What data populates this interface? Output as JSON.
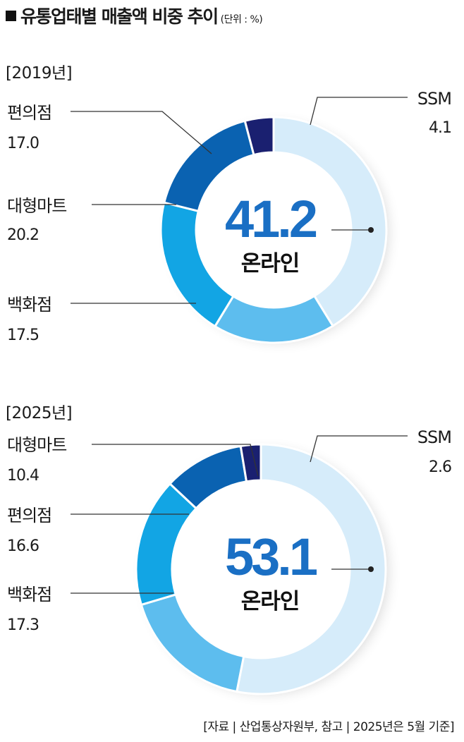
{
  "header": {
    "title": "유통업태별 매출액 비중 추이",
    "unit": "(단위 : %)"
  },
  "colors": {
    "online": "#d6ecfa",
    "ssm": "#1a2070",
    "dept_store": "#5dbdee",
    "hypermarket": "#12a5e4",
    "convenience": "#0a62b1",
    "center_value": "#1a6fc4"
  },
  "chart_data": [
    {
      "type": "pie",
      "year_label": "[2019년]",
      "center_value": "41.2",
      "center_label": "온라인",
      "slices": [
        {
          "name": "온라인",
          "value": 41.2,
          "color": "#d6ecfa"
        },
        {
          "name": "백화점",
          "value": 17.5,
          "color": "#5dbdee"
        },
        {
          "name": "대형마트",
          "value": 20.2,
          "color": "#12a5e4"
        },
        {
          "name": "편의점",
          "value": 17.0,
          "color": "#0a62b1"
        },
        {
          "name": "SSM",
          "value": 4.1,
          "color": "#1a2070"
        }
      ],
      "labels": [
        {
          "name": "편의점",
          "value": "17.0"
        },
        {
          "name": "대형마트",
          "value": "20.2"
        },
        {
          "name": "백화점",
          "value": "17.5"
        },
        {
          "name": "SSM",
          "value": "4.1"
        }
      ]
    },
    {
      "type": "pie",
      "year_label": "[2025년]",
      "center_value": "53.1",
      "center_label": "온라인",
      "slices": [
        {
          "name": "온라인",
          "value": 53.1,
          "color": "#d6ecfa"
        },
        {
          "name": "백화점",
          "value": 17.3,
          "color": "#5dbdee"
        },
        {
          "name": "편의점",
          "value": 16.6,
          "color": "#12a5e4"
        },
        {
          "name": "대형마트",
          "value": 10.4,
          "color": "#0a62b1"
        },
        {
          "name": "SSM",
          "value": 2.6,
          "color": "#1a2070"
        }
      ],
      "labels": [
        {
          "name": "대형마트",
          "value": "10.4"
        },
        {
          "name": "편의점",
          "value": "16.6"
        },
        {
          "name": "백화점",
          "value": "17.3"
        },
        {
          "name": "SSM",
          "value": "2.6"
        }
      ]
    }
  ],
  "source": "[자료 | 산업통상자원부, 참고 | 2025년은 5월 기준]"
}
